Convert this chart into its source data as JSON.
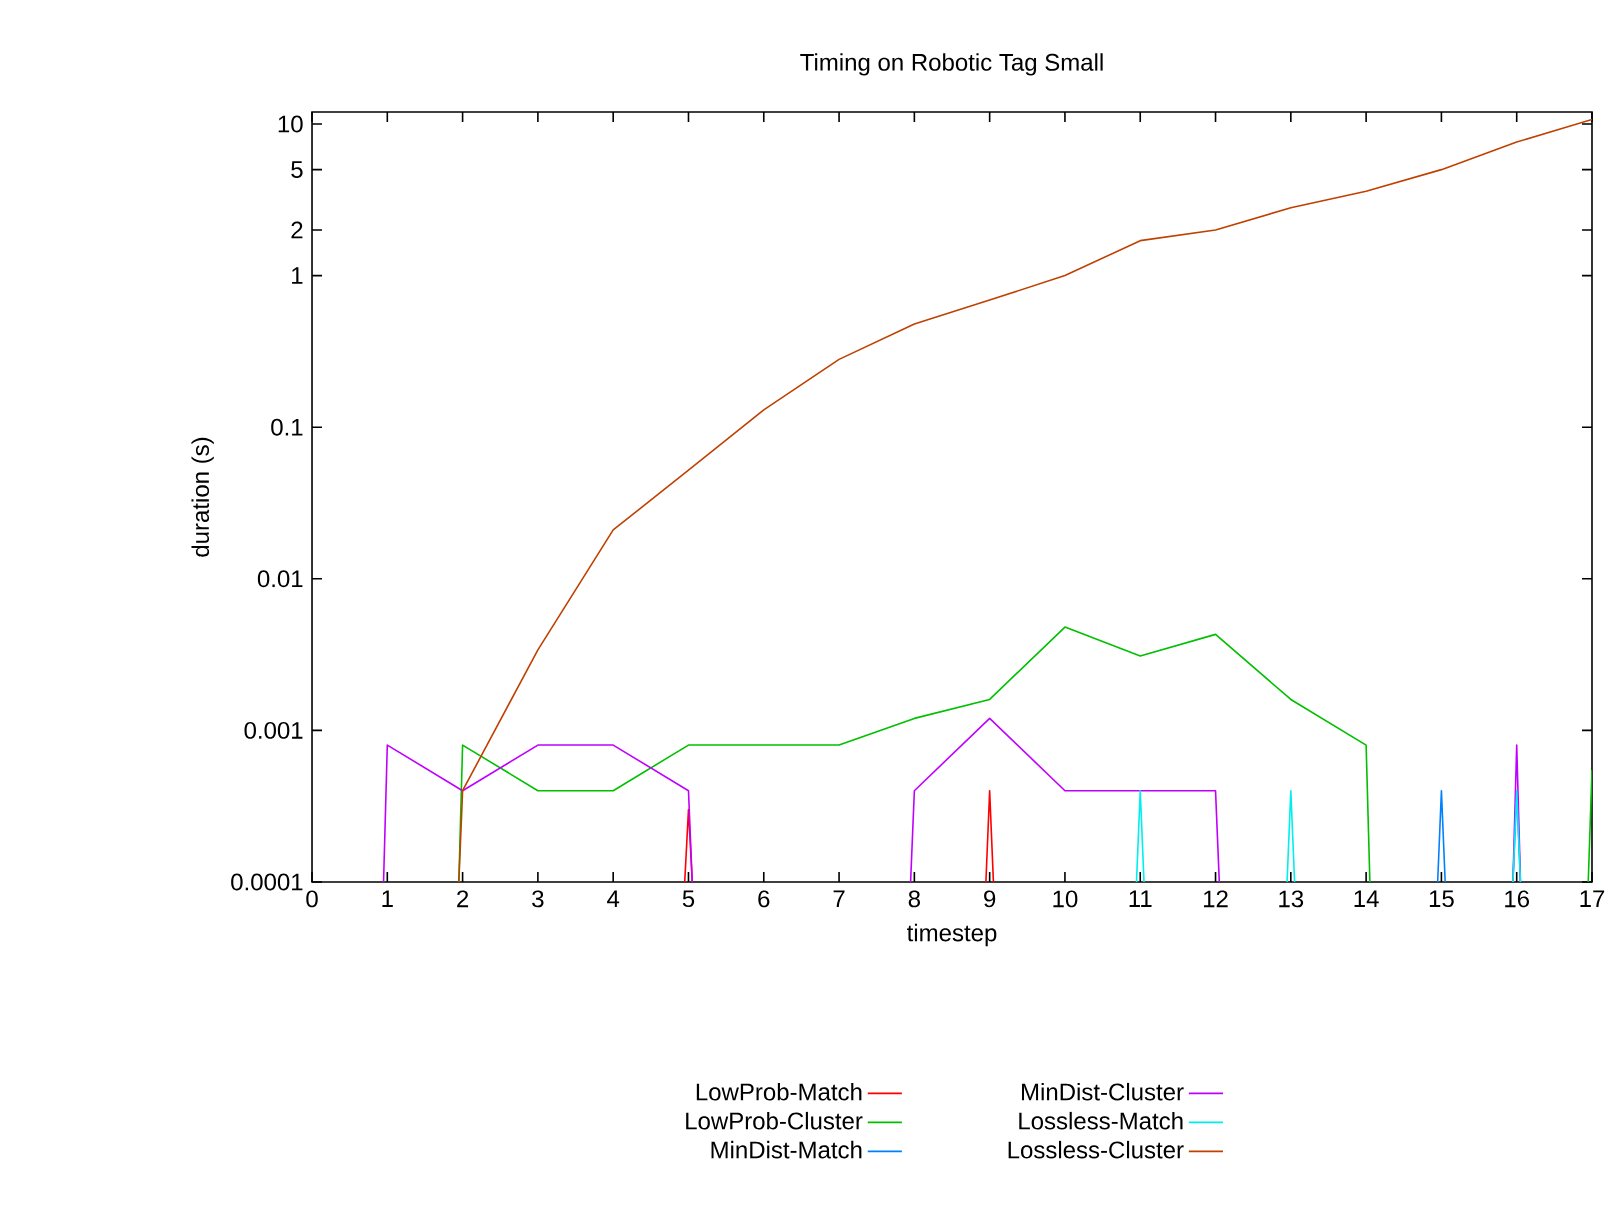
{
  "chart_data": {
    "type": "line",
    "title": "Timing on Robotic Tag Small",
    "xlabel": "timestep",
    "ylabel": "duration (s)",
    "log": "y",
    "xlim": [
      0,
      17
    ],
    "ylim": [
      0.0001,
      12
    ],
    "xticks": [
      0,
      1,
      2,
      3,
      4,
      5,
      6,
      7,
      8,
      9,
      10,
      11,
      12,
      13,
      14,
      15,
      16,
      17
    ],
    "yticks": [
      0.0001,
      0.001,
      0.01,
      0.1,
      1,
      2,
      5,
      10
    ],
    "legend": "bottom",
    "marker": "none",
    "line_style": "solid",
    "grid": false,
    "series": [
      {
        "name": "LowProb-Match",
        "color": "#ff0000",
        "x": [
          4.95,
          5,
          5.05,
          7,
          8.95,
          9,
          9.05
        ],
        "values": [
          0.0001,
          0.0003,
          0.0001,
          null,
          0.0001,
          0.0004,
          0.0001
        ]
      },
      {
        "name": "LowProb-Cluster",
        "color": "#00c000",
        "x": [
          1.95,
          2,
          3,
          4,
          5,
          6,
          7,
          8,
          9,
          10,
          11,
          12,
          13,
          14,
          14.05,
          15.5,
          16.95,
          17
        ],
        "values": [
          0.0001,
          0.0008,
          0.0004,
          0.0004,
          0.0008,
          0.0008,
          0.0008,
          0.0012,
          0.0016,
          0.0048,
          0.0031,
          0.0043,
          0.0016,
          0.0008,
          0.0001,
          null,
          0.0001,
          0.00055
        ]
      },
      {
        "name": "MinDist-Match",
        "color": "#0080ff",
        "x": [
          14.95,
          15,
          15.05,
          15.5,
          15.95,
          16,
          16.05
        ],
        "values": [
          0.0001,
          0.0004,
          0.0001,
          null,
          0.0001,
          0.0004,
          0.0001
        ]
      },
      {
        "name": "MinDist-Cluster",
        "color": "#c000ff",
        "x": [
          0.95,
          1,
          2,
          3,
          4,
          5,
          5.05,
          6.5,
          7.95,
          8,
          9,
          10,
          11,
          12,
          12.05,
          14,
          15.95,
          16,
          16.05
        ],
        "values": [
          0.0001,
          0.0008,
          0.0004,
          0.0008,
          0.0008,
          0.0004,
          0.0001,
          null,
          0.0001,
          0.0004,
          0.0012,
          0.0004,
          0.0004,
          0.0004,
          0.0001,
          null,
          0.0001,
          0.0008,
          0.0001
        ]
      },
      {
        "name": "Lossless-Match",
        "color": "#00eeee",
        "x": [
          10.95,
          11,
          11.05,
          12,
          12.95,
          13,
          13.05,
          14.5,
          15.95,
          16,
          16.05
        ],
        "values": [
          0.0001,
          0.0004,
          0.0001,
          null,
          0.0001,
          0.0004,
          0.0001,
          null,
          0.0001,
          0.0004,
          0.0001
        ]
      },
      {
        "name": "Lossless-Cluster",
        "color": "#c04000",
        "x": [
          1.95,
          2,
          3,
          4,
          5,
          6,
          7,
          8,
          9,
          10,
          11,
          12,
          13,
          14,
          15,
          16,
          17
        ],
        "values": [
          0.0001,
          0.0004,
          0.0034,
          0.021,
          0.052,
          0.13,
          0.28,
          0.48,
          0.69,
          1.0,
          1.7,
          2.0,
          2.8,
          3.6,
          5.0,
          7.6,
          10.7
        ]
      }
    ]
  }
}
